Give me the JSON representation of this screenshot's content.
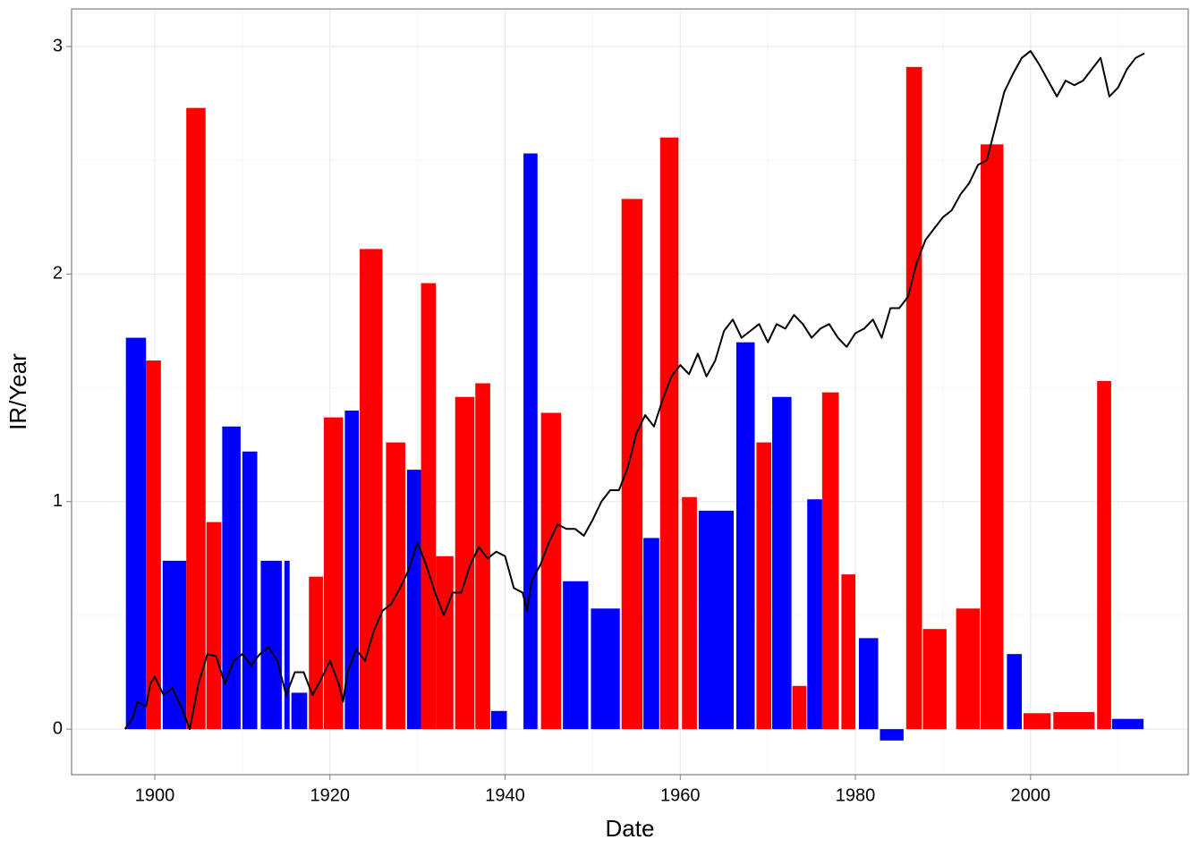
{
  "chart_data": {
    "type": "bar",
    "xlabel": "Date",
    "ylabel": "IR/Year",
    "xlim": [
      1890.5,
      2018
    ],
    "ylim": [
      -0.2,
      3.165
    ],
    "xticks": [
      1900,
      1920,
      1940,
      1960,
      1980,
      2000
    ],
    "yticks": [
      0,
      1,
      2,
      3
    ],
    "grid": true,
    "bars": {
      "start": [
        1896.7,
        1899.0,
        1900.9,
        1903.6,
        1905.9,
        1907.7,
        1910.0,
        1912.1,
        1914.8,
        1915.6,
        1917.6,
        1919.3,
        1921.7,
        1923.4,
        1926.4,
        1928.8,
        1930.4,
        1932.1,
        1934.3,
        1936.6,
        1938.4,
        1942.1,
        1944.1,
        1946.6,
        1949.8,
        1953.3,
        1955.8,
        1957.7,
        1960.2,
        1962.1,
        1966.4,
        1968.7,
        1970.5,
        1972.8,
        1974.5,
        1976.2,
        1978.4,
        1980.4,
        1982.8,
        1985.8,
        1987.7,
        1991.5,
        1994.3,
        1997.3,
        1999.2,
        2002.6,
        2007.6,
        2009.3
      ],
      "end": [
        1899.0,
        1900.7,
        1903.6,
        1905.8,
        1907.6,
        1909.8,
        1911.7,
        1914.5,
        1915.4,
        1917.4,
        1919.2,
        1921.5,
        1923.3,
        1926.0,
        1928.6,
        1930.4,
        1932.1,
        1934.1,
        1936.5,
        1938.3,
        1940.2,
        1943.7,
        1946.4,
        1949.5,
        1953.1,
        1955.7,
        1957.6,
        1959.8,
        1961.9,
        1966.1,
        1968.5,
        1970.4,
        1972.7,
        1974.4,
        1976.2,
        1978.1,
        1980.0,
        1982.6,
        1985.5,
        1987.6,
        1990.4,
        1994.2,
        1996.9,
        1999.0,
        2002.3,
        2007.3,
        2009.2,
        2012.9
      ],
      "values": [
        1.72,
        1.62,
        0.74,
        2.73,
        0.91,
        1.33,
        1.22,
        0.74,
        0.74,
        0.16,
        0.67,
        1.37,
        1.4,
        2.11,
        1.26,
        1.14,
        1.96,
        0.76,
        1.46,
        1.52,
        0.08,
        2.53,
        1.39,
        0.65,
        0.53,
        2.33,
        0.84,
        2.6,
        1.02,
        0.96,
        1.7,
        1.26,
        1.46,
        0.19,
        1.01,
        1.48,
        0.68,
        0.4,
        -0.05,
        2.91,
        0.44,
        0.53,
        2.57,
        0.33,
        0.07,
        0.075,
        1.53,
        0.045
      ],
      "colors": [
        "#0000ff",
        "#ff0000",
        "#0000ff",
        "#ff0000",
        "#ff0000",
        "#0000ff",
        "#0000ff",
        "#0000ff",
        "#0000ff",
        "#0000ff",
        "#ff0000",
        "#ff0000",
        "#0000ff",
        "#ff0000",
        "#ff0000",
        "#0000ff",
        "#ff0000",
        "#ff0000",
        "#ff0000",
        "#ff0000",
        "#0000ff",
        "#0000ff",
        "#ff0000",
        "#0000ff",
        "#0000ff",
        "#ff0000",
        "#0000ff",
        "#ff0000",
        "#ff0000",
        "#0000ff",
        "#0000ff",
        "#ff0000",
        "#0000ff",
        "#ff0000",
        "#0000ff",
        "#ff0000",
        "#ff0000",
        "#0000ff",
        "#0000ff",
        "#ff0000",
        "#ff0000",
        "#ff0000",
        "#ff0000",
        "#0000ff",
        "#ff0000",
        "#ff0000",
        "#ff0000",
        "#0000ff"
      ]
    },
    "line": {
      "color": "#000000",
      "x": [
        1896.6,
        1897.5,
        1898,
        1899,
        1899.5,
        1900,
        1901,
        1902,
        1903,
        1904,
        1905,
        1906,
        1907,
        1908,
        1909,
        1910,
        1911,
        1912,
        1913,
        1914,
        1915,
        1916,
        1917,
        1918,
        1919,
        1920,
        1921,
        1921.5,
        1922,
        1923,
        1924,
        1925,
        1926,
        1927,
        1928,
        1929,
        1930,
        1931,
        1932,
        1933,
        1934,
        1935,
        1936,
        1937,
        1938,
        1939,
        1940,
        1941,
        1942,
        1942.5,
        1943,
        1944,
        1945,
        1946,
        1947,
        1948,
        1949,
        1950,
        1951,
        1952,
        1953,
        1954,
        1955,
        1956,
        1957,
        1958,
        1959,
        1960,
        1961,
        1962,
        1963,
        1964,
        1965,
        1966,
        1967,
        1968,
        1969,
        1970,
        1971,
        1972,
        1973,
        1974,
        1975,
        1976,
        1977,
        1978,
        1979,
        1980,
        1981,
        1982,
        1983,
        1984,
        1985,
        1986,
        1987,
        1988,
        1989,
        1990,
        1991,
        1992,
        1993,
        1994,
        1995,
        1996,
        1997,
        1998,
        1999,
        2000,
        2001,
        2002,
        2003,
        2004,
        2005,
        2006,
        2007,
        2008,
        2009,
        2010,
        2011,
        2012,
        2013
      ],
      "values": [
        0.0,
        0.05,
        0.12,
        0.1,
        0.2,
        0.23,
        0.15,
        0.18,
        0.1,
        0.0,
        0.2,
        0.33,
        0.32,
        0.2,
        0.3,
        0.33,
        0.28,
        0.33,
        0.36,
        0.3,
        0.15,
        0.25,
        0.25,
        0.15,
        0.22,
        0.3,
        0.2,
        0.12,
        0.25,
        0.35,
        0.3,
        0.43,
        0.52,
        0.55,
        0.62,
        0.7,
        0.82,
        0.72,
        0.6,
        0.5,
        0.6,
        0.6,
        0.72,
        0.8,
        0.75,
        0.78,
        0.76,
        0.62,
        0.6,
        0.52,
        0.65,
        0.72,
        0.82,
        0.9,
        0.88,
        0.88,
        0.85,
        0.92,
        1.0,
        1.05,
        1.05,
        1.15,
        1.3,
        1.38,
        1.33,
        1.45,
        1.55,
        1.6,
        1.56,
        1.65,
        1.55,
        1.62,
        1.75,
        1.8,
        1.72,
        1.75,
        1.78,
        1.7,
        1.78,
        1.76,
        1.82,
        1.78,
        1.72,
        1.76,
        1.78,
        1.72,
        1.68,
        1.74,
        1.76,
        1.8,
        1.72,
        1.85,
        1.85,
        1.9,
        2.05,
        2.15,
        2.2,
        2.25,
        2.28,
        2.35,
        2.4,
        2.48,
        2.5,
        2.65,
        2.8,
        2.88,
        2.95,
        2.98,
        2.92,
        2.85,
        2.78,
        2.85,
        2.83,
        2.85,
        2.9,
        2.95,
        2.78,
        2.82,
        2.9,
        2.95,
        2.97
      ]
    }
  }
}
